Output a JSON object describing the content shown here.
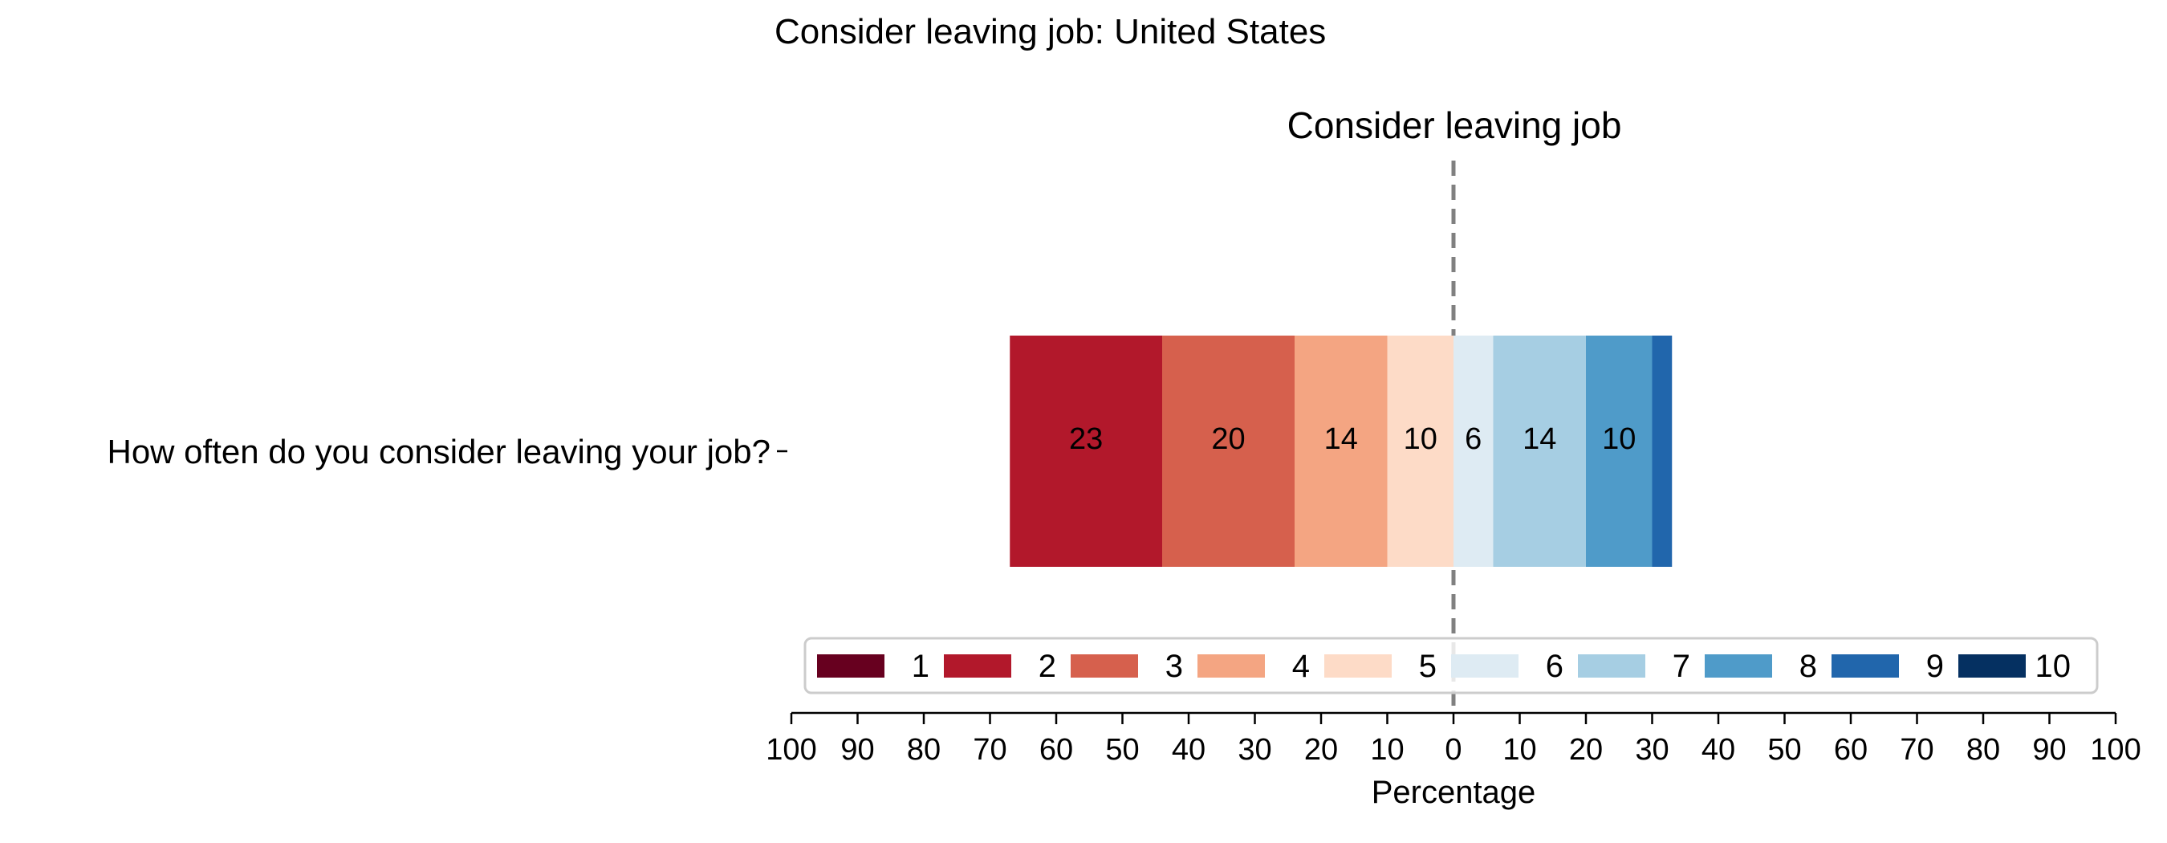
{
  "chart_data": {
    "type": "bar",
    "orientation": "horizontal-diverging",
    "title": "Consider leaving job: United States",
    "subtitle": "Consider leaving job",
    "xlabel": "Percentage",
    "ylabel": "",
    "xlim": [
      -100,
      100
    ],
    "x_ticks": [
      -100,
      -90,
      -80,
      -70,
      -60,
      -50,
      -40,
      -30,
      -20,
      -10,
      0,
      10,
      20,
      30,
      40,
      50,
      60,
      70,
      80,
      90,
      100
    ],
    "x_tick_labels": [
      "100",
      "90",
      "80",
      "70",
      "60",
      "50",
      "40",
      "30",
      "20",
      "10",
      "0",
      "10",
      "20",
      "30",
      "40",
      "50",
      "60",
      "70",
      "80",
      "90",
      "100"
    ],
    "categories": [
      "How often do you consider leaving your job?"
    ],
    "reference_line": {
      "x": 0,
      "style": "dashed",
      "color": "#808080"
    },
    "grid": false,
    "legend_position": "bottom-center",
    "legend_columns": 10,
    "series": [
      {
        "name": "1",
        "values": [
          0
        ],
        "color": "#67001f",
        "side": "left",
        "label": ""
      },
      {
        "name": "2",
        "values": [
          23
        ],
        "color": "#b2182b",
        "side": "left",
        "label": "23"
      },
      {
        "name": "3",
        "values": [
          20
        ],
        "color": "#d6604d",
        "side": "left",
        "label": "20"
      },
      {
        "name": "4",
        "values": [
          14
        ],
        "color": "#f4a582",
        "side": "left",
        "label": "14"
      },
      {
        "name": "5",
        "values": [
          10
        ],
        "color": "#fddbc7",
        "side": "left",
        "label": "10"
      },
      {
        "name": "6",
        "values": [
          6
        ],
        "color": "#deebf3",
        "side": "right",
        "label": "6"
      },
      {
        "name": "7",
        "values": [
          14
        ],
        "color": "#a6cee3",
        "side": "right",
        "label": "14"
      },
      {
        "name": "8",
        "values": [
          10
        ],
        "color": "#4f9bc9",
        "side": "right",
        "label": "10"
      },
      {
        "name": "9",
        "values": [
          3
        ],
        "color": "#2166ac",
        "side": "right",
        "label": ""
      },
      {
        "name": "10",
        "values": [
          0
        ],
        "color": "#053061",
        "side": "right",
        "label": ""
      }
    ]
  }
}
